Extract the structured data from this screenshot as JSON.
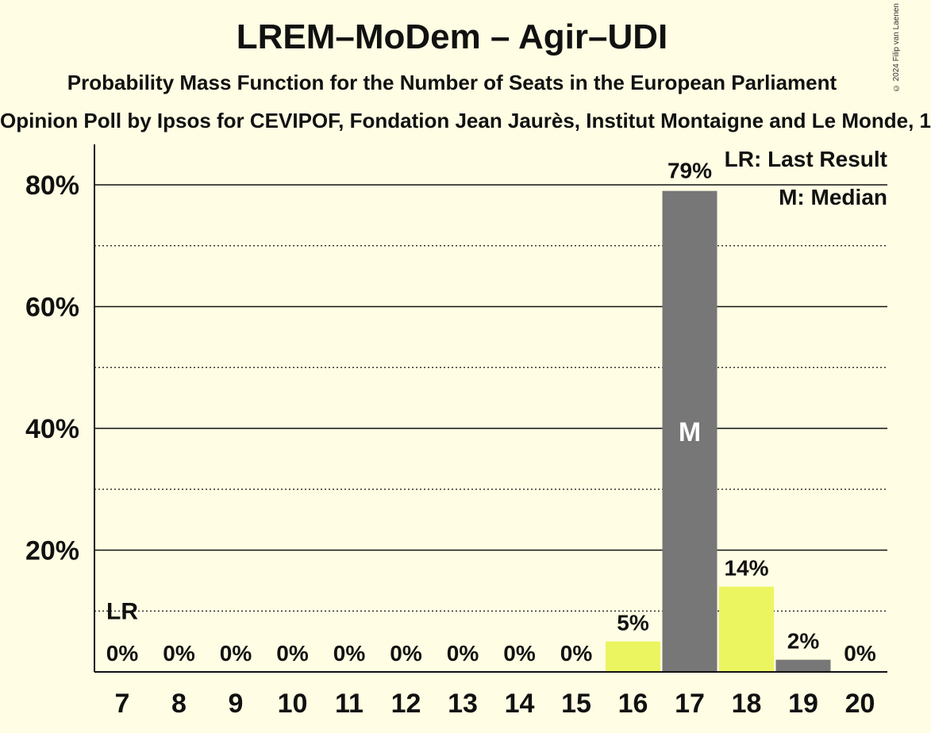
{
  "title": "LREM–MoDem – Agir–UDI",
  "subtitle": "Probability Mass Function for the Number of Seats in the European Parliament",
  "source": "Opinion Poll by Ipsos for CEVIPOF, Fondation Jean Jaurès, Institut Montaigne and Le Monde, 1",
  "copyright": "© 2024 Filip van Laenen",
  "legend": {
    "lr": "LR: Last Result",
    "m": "M: Median"
  },
  "colors": {
    "background": "#fffde3",
    "in_range": "#ebf55f",
    "median": "#777777",
    "axis": "#111111"
  },
  "chart_data": {
    "type": "bar",
    "categories": [
      "7",
      "8",
      "9",
      "10",
      "11",
      "12",
      "13",
      "14",
      "15",
      "16",
      "17",
      "18",
      "19",
      "20"
    ],
    "values": [
      0,
      0,
      0,
      0,
      0,
      0,
      0,
      0,
      0,
      5,
      79,
      14,
      2,
      0
    ],
    "value_labels": [
      "0%",
      "0%",
      "0%",
      "0%",
      "0%",
      "0%",
      "0%",
      "0%",
      "0%",
      "5%",
      "79%",
      "14%",
      "2%",
      "0%"
    ],
    "bar_colors": [
      "#ebf55f",
      "#ebf55f",
      "#ebf55f",
      "#ebf55f",
      "#ebf55f",
      "#ebf55f",
      "#ebf55f",
      "#ebf55f",
      "#ebf55f",
      "#ebf55f",
      "#777777",
      "#ebf55f",
      "#777777",
      "#777777"
    ],
    "last_result_category": "7",
    "last_result_label": "LR",
    "median_category": "17",
    "median_label": "M",
    "ylim": [
      0,
      87
    ],
    "yticks": [
      20,
      40,
      60,
      80
    ],
    "ytick_labels": [
      "20%",
      "40%",
      "60%",
      "80%"
    ],
    "minor_gridlines": [
      10,
      30,
      50,
      70
    ],
    "lr_line_value": 10,
    "legend_position": "top-right"
  }
}
